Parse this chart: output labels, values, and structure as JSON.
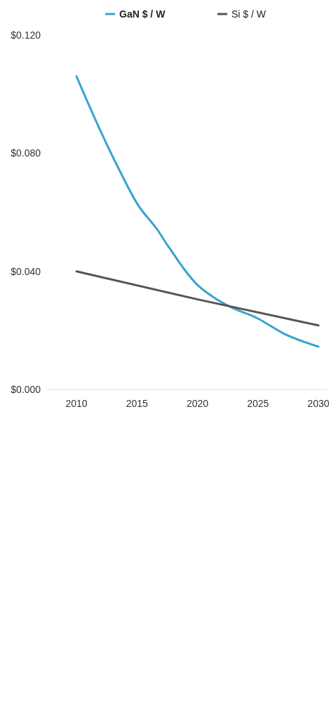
{
  "chart_data": {
    "type": "line",
    "xlim": [
      2007.5,
      2030.7
    ],
    "xticks": [
      2010,
      2015,
      2020,
      2025,
      2030
    ],
    "ylim": [
      0,
      0.12
    ],
    "yticks": [
      {
        "value": 0,
        "label": "$0.000"
      },
      {
        "value": 0.04,
        "label": "$0.040"
      },
      {
        "value": 0.08,
        "label": "$0.080"
      },
      {
        "value": 0.12,
        "label": "$0.120"
      }
    ],
    "series": [
      {
        "name": "GaN $ / W",
        "color": "#3aa3cc",
        "x": [
          2010,
          2011.6,
          2013.7,
          2015,
          2016.7,
          2017.5,
          2020.1,
          2021.4,
          2022.7,
          2025,
          2027.1,
          2030
        ],
        "values": [
          0.106,
          0.091,
          0.073,
          0.063,
          0.054,
          0.049,
          0.035,
          0.031,
          0.028,
          0.024,
          0.019,
          0.0145
        ]
      },
      {
        "name": "Si $ / W",
        "color": "#555555",
        "x": [
          2010,
          2020,
          2030
        ],
        "values": [
          0.04,
          0.0305,
          0.0217
        ]
      }
    ],
    "legend": "top",
    "grid": false,
    "marker": "none",
    "line_style": "solid"
  }
}
